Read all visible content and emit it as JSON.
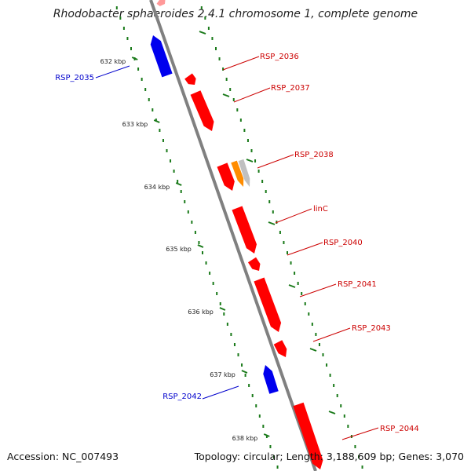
{
  "title": "Rhodobacter sphaeroides 2.4.1 chromosome 1, complete genome",
  "footer": {
    "accession": "Accession: NC_007493",
    "summary": "Topology: circular; Length: 3,188,609 bp; Genes: 3,070"
  },
  "colors": {
    "forward_gene": "#ff0000",
    "reverse_gene": "#0000ee",
    "rna_gene": "#ff8c00",
    "pseudo_gene": "#c0c0c0",
    "backbone": "#808080",
    "tick": "#1a7a1a",
    "forward_label": "#cc0000",
    "reverse_label": "#0000cc"
  },
  "axis_ticks": [
    "632 kbp",
    "633 kbp",
    "634 kbp",
    "635 kbp",
    "636 kbp",
    "637 kbp",
    "638 kbp"
  ],
  "genes": [
    {
      "name": "RSP_2035",
      "strand": "reverse"
    },
    {
      "name": "RSP_2036",
      "strand": "forward"
    },
    {
      "name": "RSP_2037",
      "strand": "forward"
    },
    {
      "name": "RSP_2038",
      "strand": "forward"
    },
    {
      "name": "linC",
      "strand": "forward"
    },
    {
      "name": "RSP_2040",
      "strand": "forward"
    },
    {
      "name": "RSP_2041",
      "strand": "forward"
    },
    {
      "name": "RSP_2042",
      "strand": "reverse"
    },
    {
      "name": "RSP_2043",
      "strand": "forward"
    },
    {
      "name": "RSP_2044",
      "strand": "forward"
    }
  ]
}
